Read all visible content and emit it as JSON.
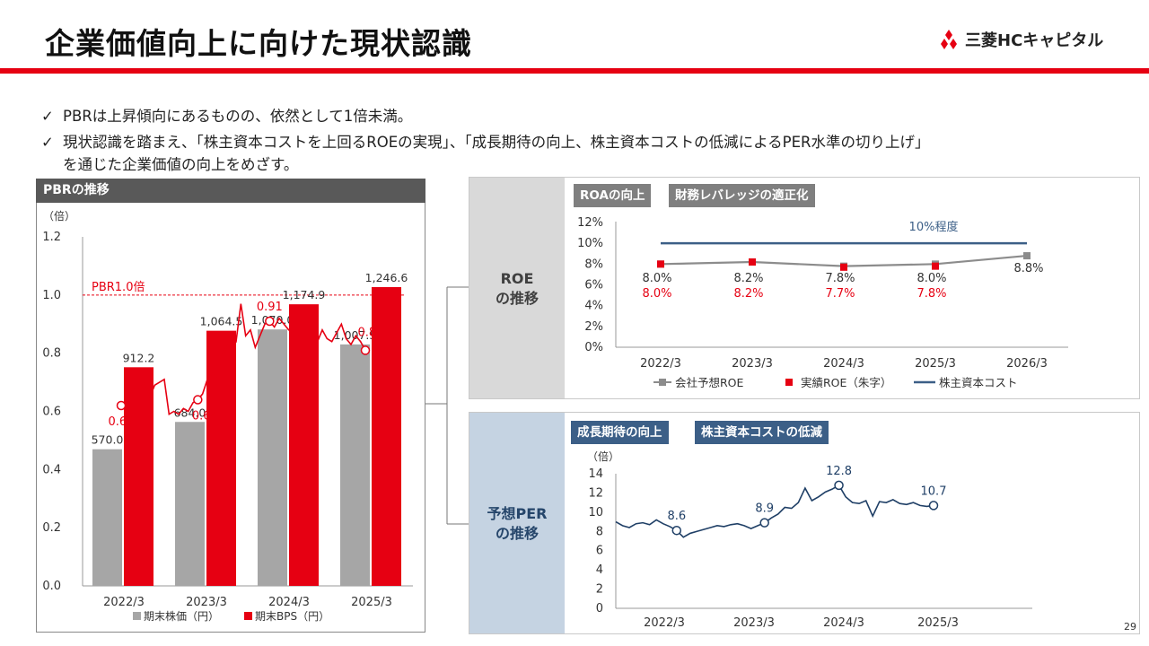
{
  "header": {
    "title": "企業価値向上に向けた現状認識",
    "logo_text": "三菱HCキャピタル"
  },
  "bullets": {
    "check": "✓",
    "line1": "PBRは上昇傾向にあるものの、依然として1倍未満。",
    "line2": "現状認識を踏まえ、「株主資本コストを上回るROEの実現」、「成長期待の向上、株主資本コストの低減によるPER水準の切り上げ」",
    "line3": "を通じた企業価値の向上をめざす。"
  },
  "pbr_panel": {
    "header": "PBRの推移",
    "unit": "（倍）",
    "reference_label": "PBR1.0倍",
    "y_ticks": [
      "1.2",
      "1.0",
      "0.8",
      "0.6",
      "0.4",
      "0.2",
      "0.0"
    ],
    "x_ticks": [
      "2022/3",
      "2023/3",
      "2024/3",
      "2025/3"
    ],
    "legend": {
      "price": "期末株価（円）",
      "bps": "期末BPS（円）"
    },
    "colors": {
      "price": "#a6a6a6",
      "bps": "#e60012",
      "line": "#e60012"
    }
  },
  "roe_panel": {
    "side_label_1": "ROE",
    "side_label_2": "の推移",
    "tag_1": "ROAの向上",
    "tag_2": "財務レバレッジの適正化",
    "cost_label": "10%程度",
    "y_ticks": [
      "12%",
      "10%",
      "8%",
      "6%",
      "4%",
      "2%",
      "0%"
    ],
    "x_ticks": [
      "2022/3",
      "2023/3",
      "2024/3",
      "2025/3",
      "2026/3"
    ],
    "legend": {
      "forecast": "会社予想ROE",
      "actual": "実績ROE（朱字）",
      "cost": "株主資本コスト"
    },
    "colors": {
      "forecast": "#8c8c8c",
      "actual": "#e60012",
      "cost": "#3c5f87"
    }
  },
  "per_panel": {
    "side_label_1": "予想PER",
    "side_label_2": "の推移",
    "tag_1": "成長期待の向上",
    "tag_2": "株主資本コストの低減",
    "unit": "（倍）",
    "y_ticks": [
      "14",
      "12",
      "10",
      "8",
      "6",
      "4",
      "2",
      "0"
    ],
    "x_ticks": [
      "2022/3",
      "2023/3",
      "2024/3",
      "2025/3"
    ],
    "colors": {
      "line": "#1f3f66"
    }
  },
  "page_number": "29",
  "chart_data": [
    {
      "type": "bar",
      "title": "PBRの推移",
      "categories": [
        "2022/3",
        "2023/3",
        "2024/3",
        "2025/3"
      ],
      "series": [
        {
          "name": "期末株価（円）",
          "values": [
            570.0,
            684.0,
            1070.0,
            1007.5
          ],
          "labels": [
            "570.0",
            "684.0",
            "1,070.0",
            "1,007.5"
          ]
        },
        {
          "name": "期末BPS（円）",
          "values": [
            912.2,
            1064.5,
            1174.9,
            1246.6
          ],
          "labels": [
            "912.2",
            "1,064.5",
            "1,174.9",
            "1,246.6"
          ]
        }
      ]
    },
    {
      "type": "line",
      "title": "PBRの推移",
      "ylabel": "（倍）",
      "ylim": [
        0,
        1.2
      ],
      "reference_line": 1.0,
      "x_range": [
        "2022/3",
        "2025/3"
      ],
      "values": [
        0.62,
        0.63,
        0.66,
        0.69,
        0.68,
        0.7,
        0.65,
        0.69,
        0.7,
        0.71,
        0.59,
        0.6,
        0.59,
        0.61,
        0.6,
        0.63,
        0.64,
        0.66,
        0.71,
        0.73,
        0.72,
        0.79,
        0.82,
        0.85,
        0.84,
        0.97,
        0.86,
        0.88,
        0.82,
        0.86,
        0.9,
        0.91,
        0.89,
        0.92,
        0.9,
        0.88,
        0.87,
        0.86,
        0.85,
        0.7,
        0.86,
        0.84,
        0.88,
        0.85,
        0.84,
        0.87,
        0.9,
        0.85,
        0.83,
        0.86,
        0.84,
        0.81
      ],
      "annotations": [
        {
          "label": "0.62",
          "value": 0.62
        },
        {
          "label": "0.64",
          "value": 0.64
        },
        {
          "label": "0.91",
          "value": 0.91
        },
        {
          "label": "0.81",
          "value": 0.81
        }
      ]
    },
    {
      "type": "line",
      "title": "ROEの推移",
      "ylim": [
        0,
        12
      ],
      "categories": [
        "2022/3",
        "2023/3",
        "2024/3",
        "2025/3",
        "2026/3"
      ],
      "series": [
        {
          "name": "会社予想ROE",
          "values": [
            8.0,
            8.2,
            7.8,
            8.0,
            8.8
          ],
          "labels": [
            "8.0%",
            "8.2%",
            "7.8%",
            "8.0%",
            "8.8%"
          ]
        },
        {
          "name": "実績ROE（朱字）",
          "values": [
            8.0,
            8.2,
            7.7,
            7.8,
            null
          ],
          "labels": [
            "8.0%",
            "8.2%",
            "7.7%",
            "7.8%",
            ""
          ]
        },
        {
          "name": "株主資本コスト",
          "values": [
            10,
            10,
            10,
            10,
            10
          ],
          "label": "10%程度"
        }
      ]
    },
    {
      "type": "line",
      "title": "予想PERの推移",
      "ylabel": "（倍）",
      "ylim": [
        0,
        14
      ],
      "x_range": [
        "2022/3",
        "2025/3"
      ],
      "values": [
        9.0,
        8.6,
        8.4,
        8.8,
        8.9,
        8.7,
        9.2,
        8.8,
        8.5,
        8.1,
        7.4,
        7.8,
        8.0,
        8.2,
        8.4,
        8.6,
        8.5,
        8.7,
        8.8,
        8.6,
        8.3,
        8.6,
        8.9,
        9.4,
        9.8,
        10.5,
        10.4,
        11.0,
        12.5,
        11.2,
        11.6,
        12.1,
        12.4,
        12.8,
        11.6,
        11.0,
        10.9,
        11.2,
        9.6,
        11.1,
        11.0,
        11.3,
        10.9,
        10.8,
        11.0,
        10.7,
        10.6,
        10.7
      ],
      "annotations": [
        {
          "label": "8.6",
          "value": 8.6
        },
        {
          "label": "8.9",
          "value": 8.9
        },
        {
          "label": "12.8",
          "value": 12.8
        },
        {
          "label": "10.7",
          "value": 10.7
        }
      ]
    }
  ]
}
